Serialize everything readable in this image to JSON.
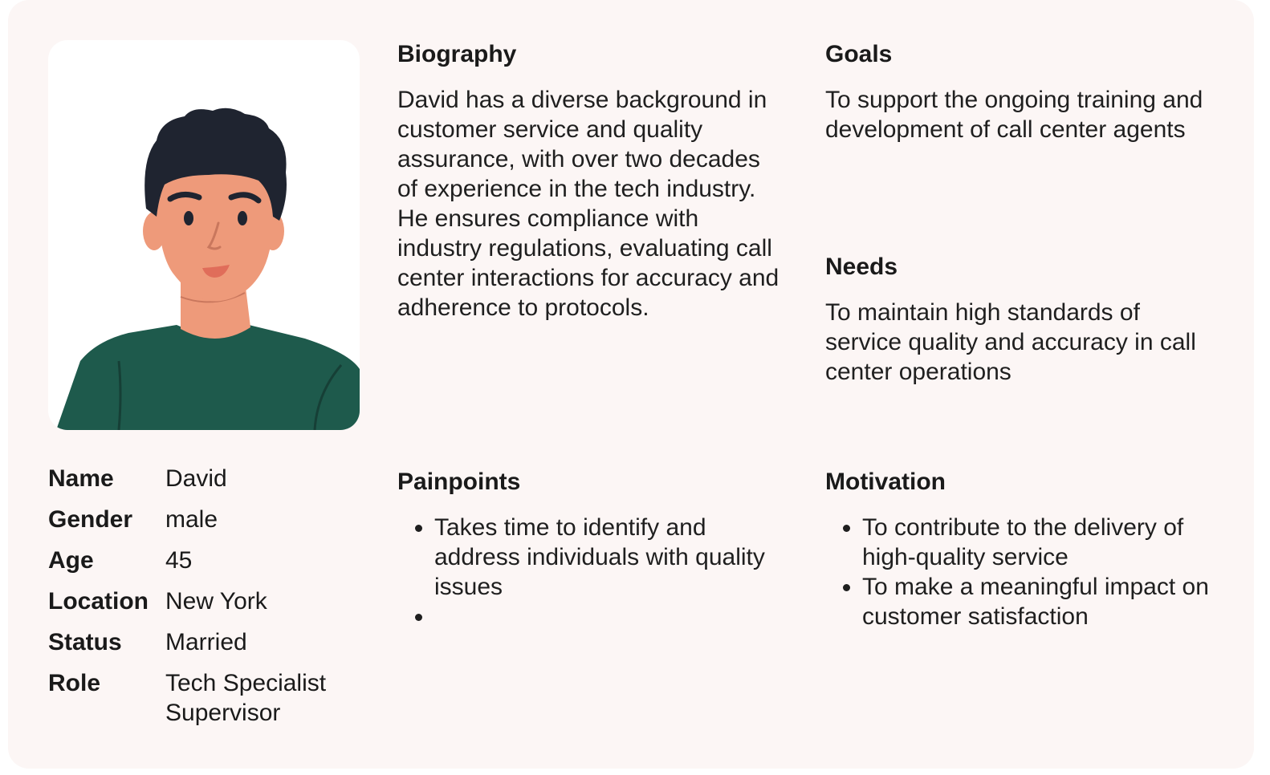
{
  "colors": {
    "card_background": "#fcf6f5",
    "skin": "#ee9a7a",
    "hair": "#1f2430",
    "shirt": "#1e5a4c"
  },
  "avatar": {
    "icon": "person-avatar-illustration"
  },
  "info": [
    {
      "label": "Name",
      "value": "David"
    },
    {
      "label": "Gender",
      "value": "male"
    },
    {
      "label": "Age",
      "value": "45"
    },
    {
      "label": "Location",
      "value": "New York"
    },
    {
      "label": "Status",
      "value": "Married"
    },
    {
      "label": "Role",
      "value": "Tech Specialist Supervisor"
    }
  ],
  "biography": {
    "title": "Biography",
    "text": "David has a diverse background in customer service and quality assurance, with over two decades of experience in the tech industry. He ensures compliance with industry regulations, evaluating call center interactions for accuracy and adherence to protocols."
  },
  "goals": {
    "title": "Goals",
    "text": "To support the ongoing training and development of call center agents"
  },
  "needs": {
    "title": "Needs",
    "text": "To maintain high standards of service quality and accuracy in call center operations"
  },
  "painpoints": {
    "title": "Painpoints",
    "items": [
      "Takes time to identify and address individuals with quality issues",
      ""
    ]
  },
  "motivation": {
    "title": "Motivation",
    "items": [
      "To contribute to the delivery of high-quality service",
      "To make a meaningful impact on customer satisfaction"
    ]
  }
}
